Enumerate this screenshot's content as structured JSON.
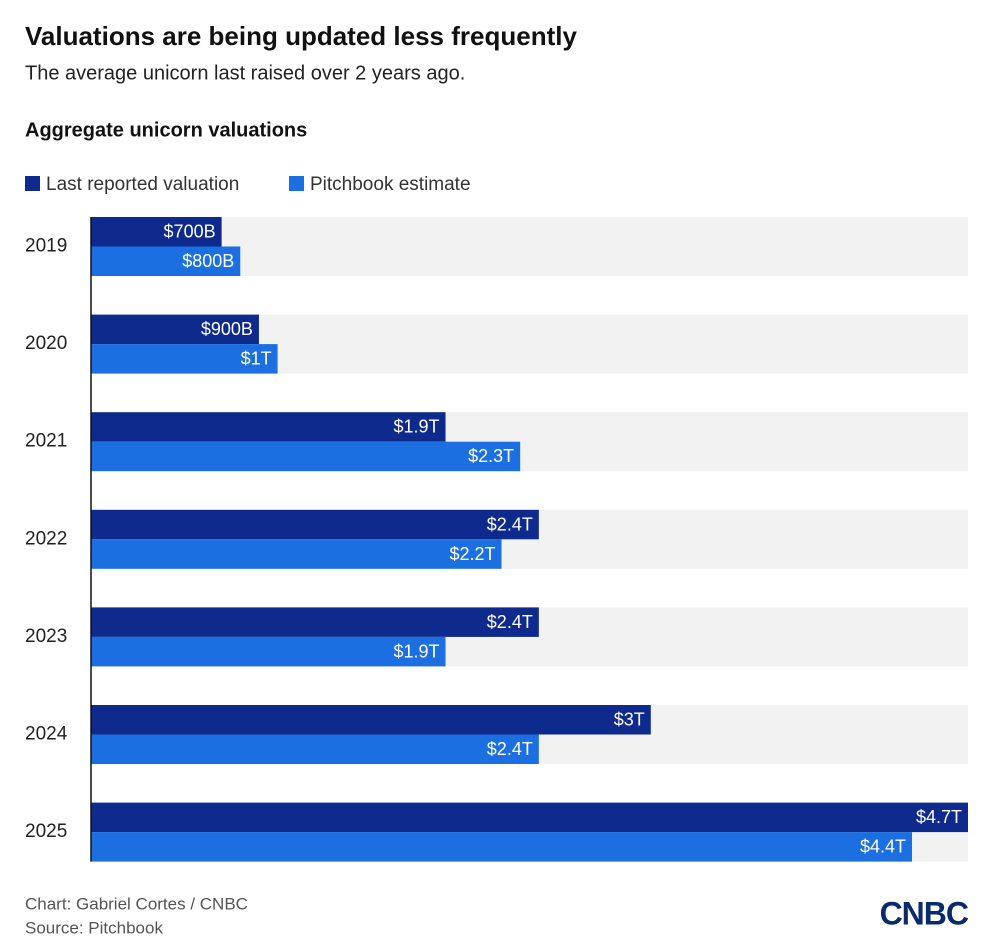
{
  "chart_data": {
    "type": "bar",
    "orientation": "horizontal",
    "title": "Valuations are being updated less frequently",
    "subtitle": "The average unicorn last raised over 2 years ago.",
    "heading": "Aggregate unicorn valuations",
    "categories": [
      "2019",
      "2020",
      "2021",
      "2022",
      "2023",
      "2024",
      "2025"
    ],
    "series": [
      {
        "name": "Last reported valuation",
        "color": "#0d2a8c",
        "values": [
          700,
          900,
          1900,
          2400,
          2400,
          3000,
          4700
        ],
        "value_labels": [
          "$700B",
          "$900B",
          "$1.9T",
          "$2.4T",
          "$2.4T",
          "$3T",
          "$4.7T"
        ]
      },
      {
        "name": "Pitchbook estimate",
        "color": "#1b6fe0",
        "values": [
          800,
          1000,
          2300,
          2200,
          1900,
          2400,
          4400
        ],
        "value_labels": [
          "$800B",
          "$1T",
          "$2.3T",
          "$2.2T",
          "$1.9T",
          "$2.4T",
          "$4.4T"
        ]
      }
    ],
    "credit": "Chart: Gabriel Cortes / CNBC",
    "source": "Source: Pitchbook",
    "logo": "CNBC"
  }
}
